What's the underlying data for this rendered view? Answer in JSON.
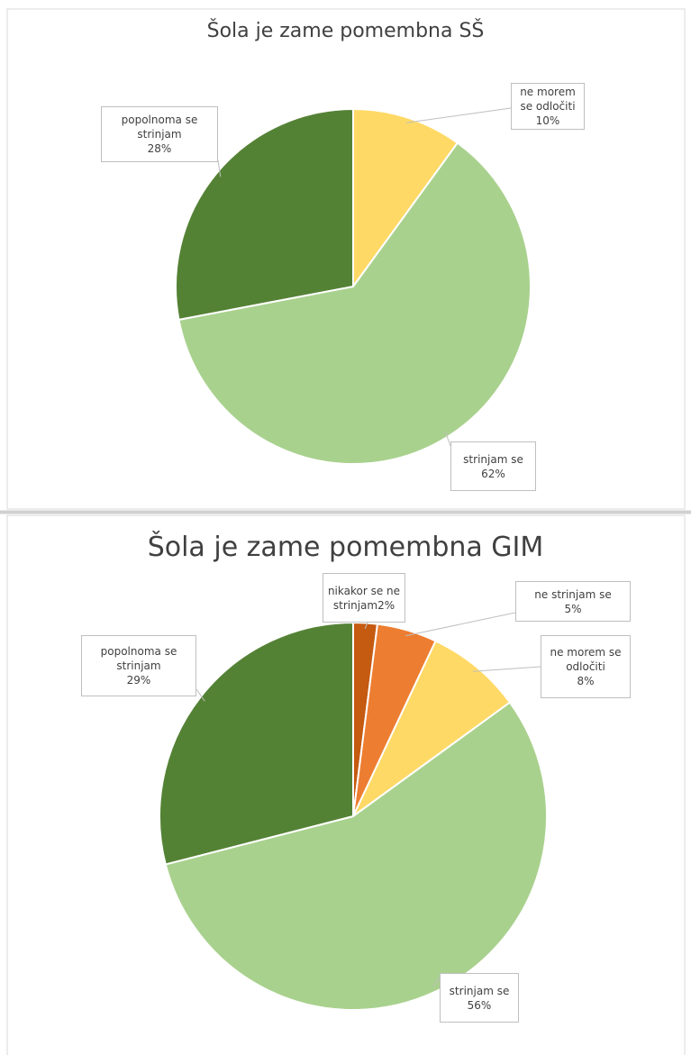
{
  "chart_data": [
    {
      "type": "pie",
      "title": "Šola je zame pomembna SŠ",
      "categories": [
        "ne morem se odločiti",
        "strinjam se",
        "popolnoma se strinjam"
      ],
      "values": [
        10,
        62,
        28
      ],
      "value_labels": [
        "10%",
        "62%",
        "28%"
      ],
      "colors": [
        "#ffd966",
        "#a9d18e",
        "#548235"
      ]
    },
    {
      "type": "pie",
      "title": "Šola je zame pomembna GIM",
      "categories": [
        "nikakor se ne strinjam",
        "ne strinjam se",
        "ne morem se odločiti",
        "strinjam se",
        "popolnoma se strinjam"
      ],
      "values": [
        2,
        5,
        8,
        56,
        29
      ],
      "value_labels": [
        "2%",
        "5%",
        "8%",
        "56%",
        "29%"
      ],
      "colors": [
        "#c55a11",
        "#ed7d31",
        "#ffd966",
        "#a9d18e",
        "#548235"
      ]
    }
  ]
}
